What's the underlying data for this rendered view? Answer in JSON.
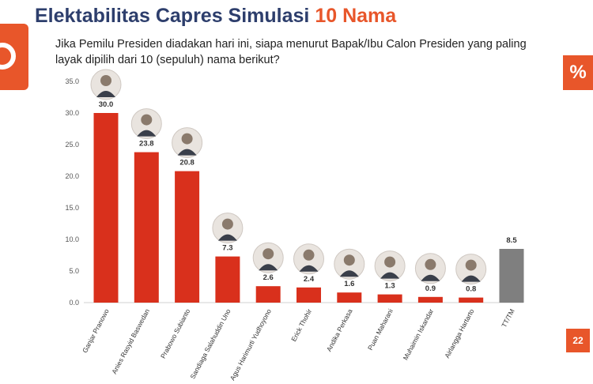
{
  "header": {
    "title_main": "Elektabilitas Capres Simulasi",
    "title_accent": "10 Nama",
    "question": "Jika Pemilu Presiden diadakan hari ini, siapa menurut Bapak/Ibu Calon Presiden yang paling layak dipilih dari 10 (sepuluh) nama berikut?"
  },
  "badges": {
    "percent": "%",
    "page_number": "22"
  },
  "colors": {
    "accent": "#e8562a",
    "title": "#2d3e6c",
    "bar_candidate": "#d9301c",
    "bar_undecided": "#7f7f7f"
  },
  "chart_data": {
    "type": "bar",
    "title": "",
    "xlabel": "",
    "ylabel": "",
    "ylim": [
      0,
      35
    ],
    "yticks": [
      0,
      5,
      10,
      15,
      20,
      25,
      30,
      35
    ],
    "ytick_labels": [
      "0.0",
      "5.0",
      "10.0",
      "15.0",
      "20.0",
      "25.0",
      "30.0",
      "35.0"
    ],
    "grid": false,
    "categories": [
      "Ganjar Pranowo",
      "Anies Rasyid Baswedan",
      "Prabowo Subianto",
      "Sandiaga Salahuddin Uno",
      "Agus Harimurti Yudhoyono",
      "Erick Thohir",
      "Andika Perkasa",
      "Puan Maharani",
      "Muhaimin Iskandar",
      "Airlangga Hartarto",
      "TT/TM"
    ],
    "values": [
      30.0,
      23.8,
      20.8,
      7.3,
      2.6,
      2.4,
      1.6,
      1.3,
      0.9,
      0.8,
      8.5
    ],
    "value_labels": [
      "30.0",
      "23.8",
      "20.8",
      "7.3",
      "2.6",
      "2.4",
      "1.6",
      "1.3",
      "0.9",
      "0.8",
      "8.5"
    ],
    "photo_icons": [
      "candidate-photo-icon",
      "candidate-photo-icon",
      "candidate-photo-icon",
      "candidate-photo-icon",
      "candidate-photo-icon",
      "candidate-photo-icon",
      "candidate-photo-icon",
      "candidate-photo-icon",
      "candidate-photo-icon",
      "candidate-photo-icon",
      ""
    ]
  }
}
